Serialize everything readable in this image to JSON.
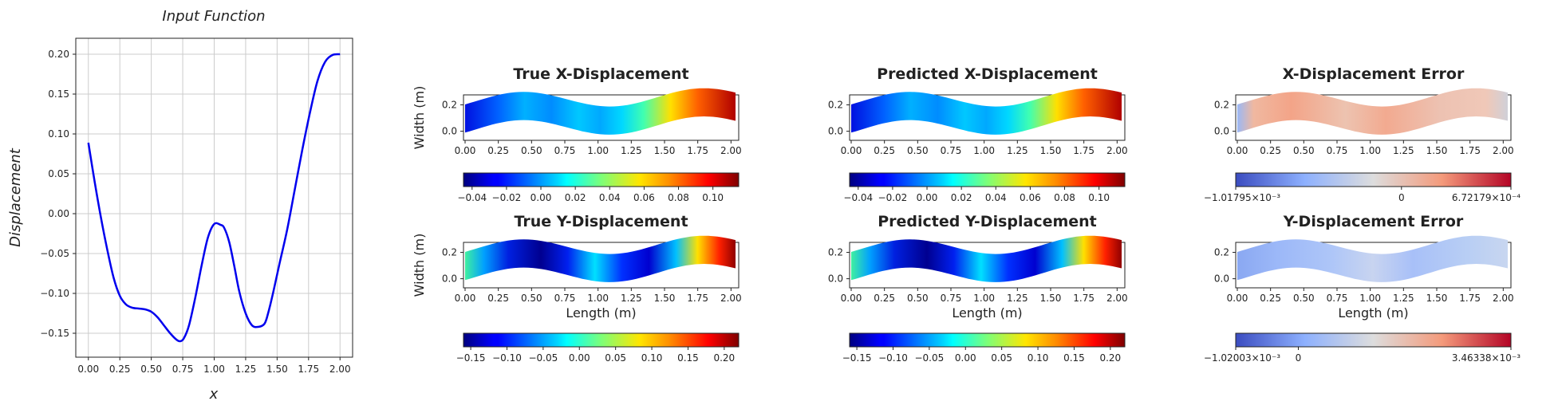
{
  "chart_data": [
    {
      "type": "line",
      "title": "Input Function",
      "xlabel": "x",
      "ylabel": "Displacement",
      "xlim": [
        -0.1,
        2.1
      ],
      "ylim": [
        -0.18,
        0.22
      ],
      "xticks": [
        "0.00",
        "0.25",
        "0.50",
        "0.75",
        "1.00",
        "1.25",
        "1.50",
        "1.75",
        "2.00"
      ],
      "yticks": [
        "0.20",
        "0.15",
        "0.10",
        "0.05",
        "0.00",
        "−0.05",
        "−0.10",
        "−0.15"
      ],
      "grid": true,
      "series": [
        {
          "name": "input",
          "color": "#0000ee",
          "x": [
            0.0,
            0.05,
            0.1,
            0.15,
            0.2,
            0.25,
            0.3,
            0.35,
            0.4,
            0.45,
            0.5,
            0.55,
            0.6,
            0.65,
            0.7,
            0.73,
            0.76,
            0.8,
            0.85,
            0.9,
            0.95,
            1.0,
            1.05,
            1.08,
            1.12,
            1.16,
            1.2,
            1.25,
            1.3,
            1.35,
            1.4,
            1.43,
            1.47,
            1.52,
            1.58,
            1.64,
            1.7,
            1.76,
            1.82,
            1.88,
            1.94,
            2.0
          ],
          "y": [
            0.089,
            0.04,
            -0.005,
            -0.045,
            -0.08,
            -0.103,
            -0.114,
            -0.118,
            -0.119,
            -0.12,
            -0.123,
            -0.13,
            -0.14,
            -0.15,
            -0.158,
            -0.16,
            -0.156,
            -0.14,
            -0.105,
            -0.065,
            -0.03,
            -0.013,
            -0.014,
            -0.018,
            -0.036,
            -0.066,
            -0.098,
            -0.125,
            -0.14,
            -0.142,
            -0.138,
            -0.124,
            -0.098,
            -0.062,
            -0.02,
            0.03,
            0.08,
            0.126,
            0.166,
            0.19,
            0.199,
            0.2
          ]
        }
      ]
    },
    {
      "type": "heatmap",
      "title": "True X-Displacement",
      "ylabel": "Width (m)",
      "xlabel": "",
      "xticks": [
        "0.00",
        "0.25",
        "0.50",
        "0.75",
        "1.00",
        "1.25",
        "1.50",
        "1.75",
        "2.00"
      ],
      "yticks": [
        "0.2",
        "0.0"
      ],
      "colormap": "jet",
      "colorbar_ticks": [
        "−0.04",
        "−0.02",
        "0.00",
        "0.02",
        "0.04",
        "0.06",
        "0.08",
        "0.10"
      ],
      "vmin": -0.045,
      "vmax": 0.115
    },
    {
      "type": "heatmap",
      "title": "Predicted X-Displacement",
      "xticks": [
        "0.00",
        "0.25",
        "0.50",
        "0.75",
        "1.00",
        "1.25",
        "1.50",
        "1.75",
        "2.00"
      ],
      "yticks": [
        "0.2",
        "0.0"
      ],
      "colormap": "jet",
      "colorbar_ticks": [
        "−0.04",
        "−0.02",
        "0.00",
        "0.02",
        "0.04",
        "0.06",
        "0.08",
        "0.10"
      ],
      "vmin": -0.045,
      "vmax": 0.115
    },
    {
      "type": "heatmap",
      "title": "X-Displacement Error",
      "xticks": [
        "0.00",
        "0.25",
        "0.50",
        "0.75",
        "1.00",
        "1.25",
        "1.50",
        "1.75",
        "2.00"
      ],
      "yticks": [
        "0.2",
        "0.0"
      ],
      "colormap": "coolwarm",
      "colorbar_ticks": [
        "−1.01795×10⁻³",
        "0",
        "6.72179×10⁻⁴"
      ],
      "vmin": -0.00101795,
      "vmax": 0.000672179
    },
    {
      "type": "heatmap",
      "title": "True Y-Displacement",
      "ylabel": "Width (m)",
      "xlabel": "Length (m)",
      "xticks": [
        "0.00",
        "0.25",
        "0.50",
        "0.75",
        "1.00",
        "1.25",
        "1.50",
        "1.75",
        "2.00"
      ],
      "yticks": [
        "0.2",
        "0.0"
      ],
      "colormap": "jet",
      "colorbar_ticks": [
        "−0.15",
        "−0.10",
        "−0.05",
        "0.00",
        "0.05",
        "0.10",
        "0.15",
        "0.20"
      ],
      "vmin": -0.16,
      "vmax": 0.22
    },
    {
      "type": "heatmap",
      "title": "Predicted Y-Displacement",
      "xlabel": "Length (m)",
      "xticks": [
        "0.00",
        "0.25",
        "0.50",
        "0.75",
        "1.00",
        "1.25",
        "1.50",
        "1.75",
        "2.00"
      ],
      "yticks": [
        "0.2",
        "0.0"
      ],
      "colormap": "jet",
      "colorbar_ticks": [
        "−0.15",
        "−0.10",
        "−0.05",
        "0.00",
        "0.05",
        "0.10",
        "0.15",
        "0.20"
      ],
      "vmin": -0.16,
      "vmax": 0.22
    },
    {
      "type": "heatmap",
      "title": "Y-Displacement Error",
      "xlabel": "Length (m)",
      "xticks": [
        "0.00",
        "0.25",
        "0.50",
        "0.75",
        "1.00",
        "1.25",
        "1.50",
        "1.75",
        "2.00"
      ],
      "yticks": [
        "0.2",
        "0.0"
      ],
      "colormap": "coolwarm",
      "colorbar_ticks": [
        "−1.02003×10⁻³",
        "0",
        "3.46338×10⁻³"
      ],
      "vmin": -0.00102003,
      "vmax": 0.00346338
    }
  ]
}
